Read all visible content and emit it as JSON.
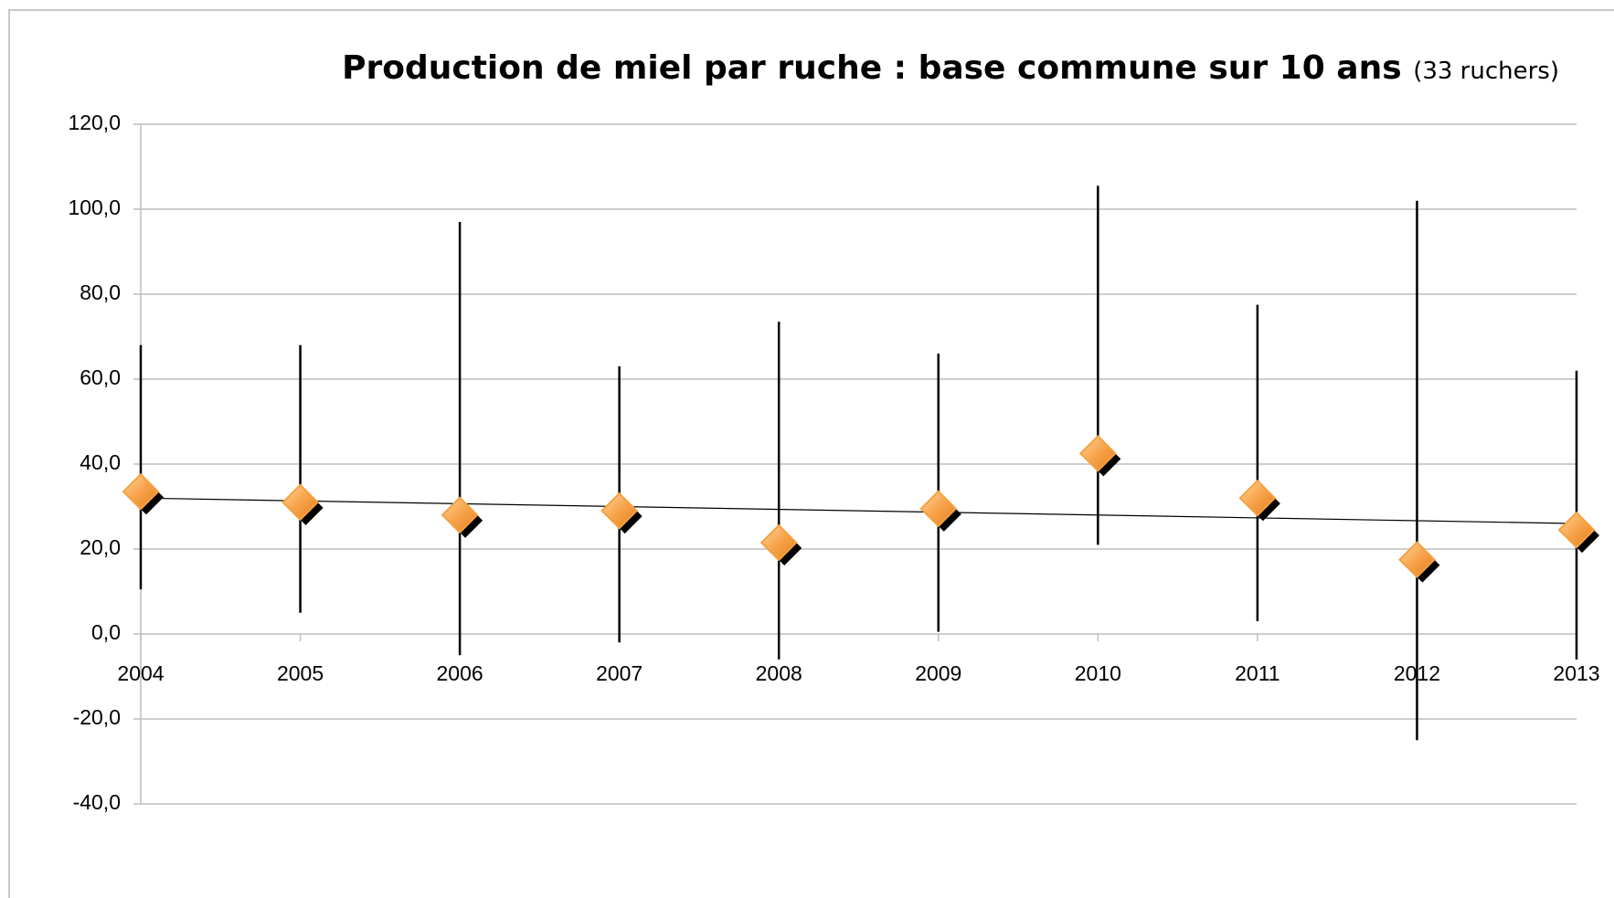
{
  "chart_data": {
    "type": "scatter",
    "title": "Production de miel par ruche : base commune sur 10 ans",
    "subtitle": "(33 ruchers)",
    "categories": [
      "2004",
      "2005",
      "2006",
      "2007",
      "2008",
      "2009",
      "2010",
      "2011",
      "2012",
      "2013"
    ],
    "values": [
      33.5,
      31,
      28,
      29,
      21.5,
      29.5,
      42.5,
      32,
      17.5,
      24.5
    ],
    "high": [
      68,
      68,
      97,
      63,
      73.5,
      66,
      105.5,
      77.5,
      102,
      62
    ],
    "low": [
      10.5,
      5,
      -5,
      -2,
      -6,
      0.5,
      21,
      3,
      -25,
      -6
    ],
    "trend": [
      32,
      26
    ],
    "color": "#f5a040",
    "ylim": [
      -40,
      120
    ],
    "yticks": [
      {
        "value": -40,
        "label": "-40,0"
      },
      {
        "value": -20,
        "label": "-20,0"
      },
      {
        "value": 0,
        "label": "0,0"
      },
      {
        "value": 20,
        "label": "20,0"
      },
      {
        "value": 40,
        "label": "40,0"
      },
      {
        "value": 60,
        "label": "60,0"
      },
      {
        "value": 80,
        "label": "80,0"
      },
      {
        "value": 100,
        "label": "100,0"
      },
      {
        "value": 120,
        "label": "120,0"
      }
    ],
    "grid": true
  }
}
